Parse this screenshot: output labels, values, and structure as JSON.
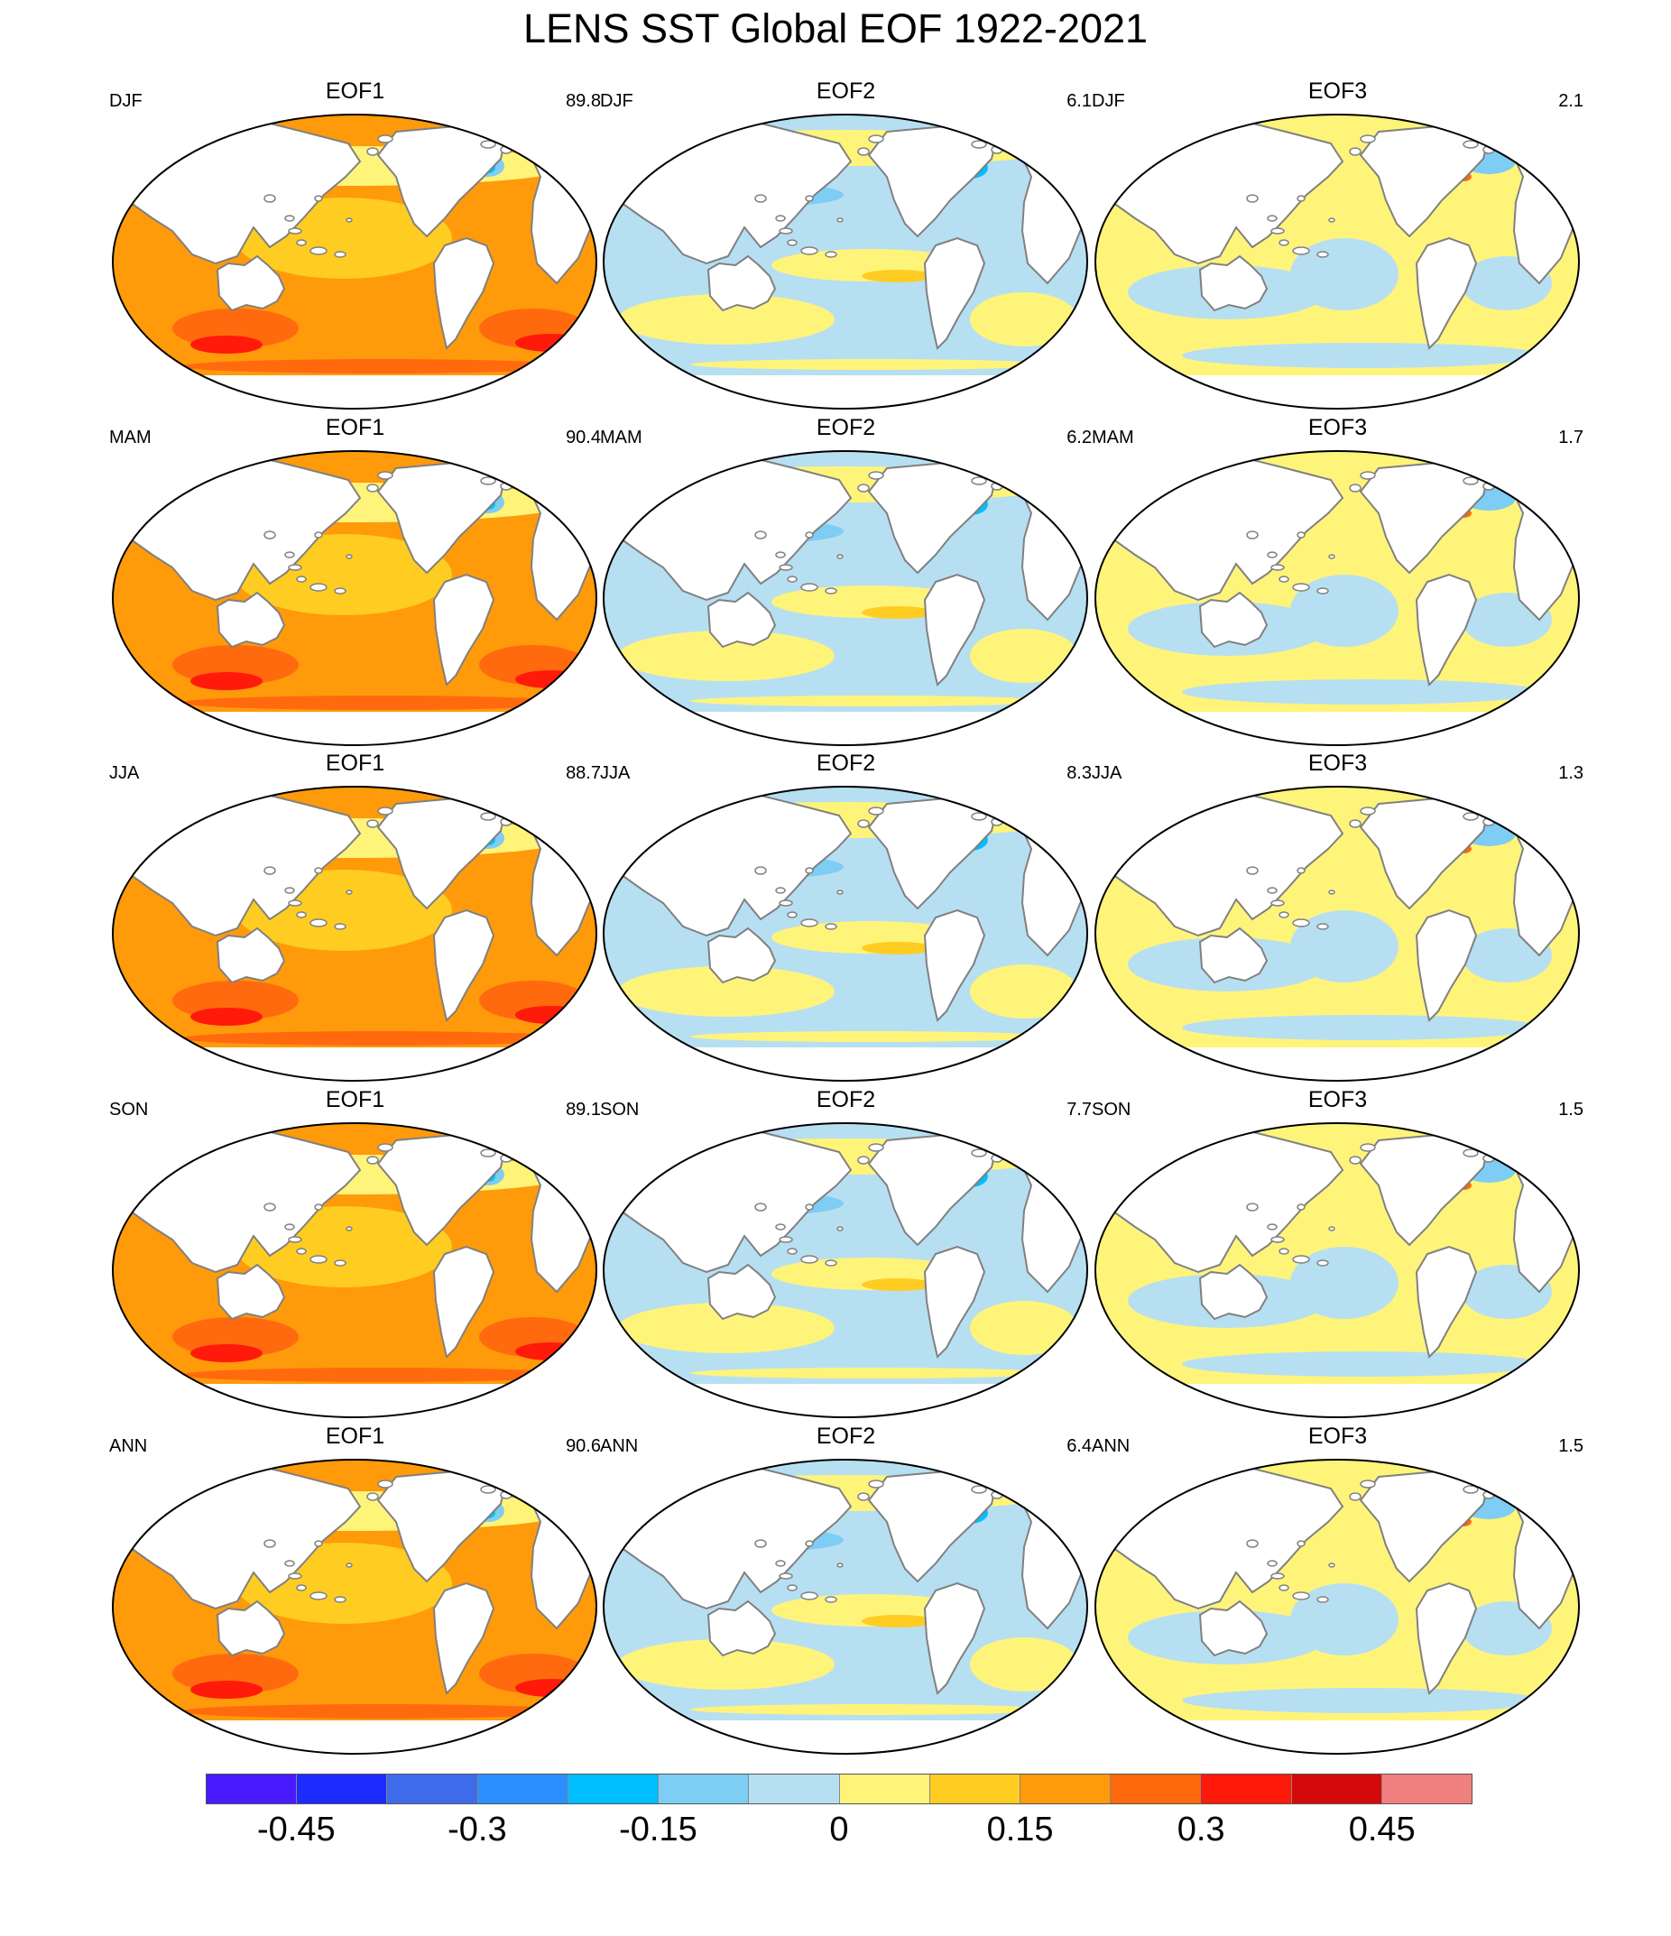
{
  "title": "LENS SST Global EOF 1922-2021",
  "chart_data": {
    "type": "heatmap",
    "title": "LENS SST Global EOF 1922-2021",
    "projection": "global map (Pacific-centered)",
    "rows": [
      "DJF",
      "MAM",
      "JJA",
      "SON",
      "ANN"
    ],
    "columns": [
      "EOF1",
      "EOF2",
      "EOF3"
    ],
    "panels": [
      {
        "season": "DJF",
        "eof": "EOF1",
        "variance": "89.8",
        "pattern": "eof1"
      },
      {
        "season": "DJF",
        "eof": "EOF2",
        "variance": "6.1",
        "pattern": "eof2"
      },
      {
        "season": "DJF",
        "eof": "EOF3",
        "variance": "2.1",
        "pattern": "eof3"
      },
      {
        "season": "MAM",
        "eof": "EOF1",
        "variance": "90.4",
        "pattern": "eof1"
      },
      {
        "season": "MAM",
        "eof": "EOF2",
        "variance": "6.2",
        "pattern": "eof2"
      },
      {
        "season": "MAM",
        "eof": "EOF3",
        "variance": "1.7",
        "pattern": "eof3"
      },
      {
        "season": "JJA",
        "eof": "EOF1",
        "variance": "88.7",
        "pattern": "eof1"
      },
      {
        "season": "JJA",
        "eof": "EOF2",
        "variance": "8.3",
        "pattern": "eof2"
      },
      {
        "season": "JJA",
        "eof": "EOF3",
        "variance": "1.3",
        "pattern": "eof3"
      },
      {
        "season": "SON",
        "eof": "EOF1",
        "variance": "89.1",
        "pattern": "eof1"
      },
      {
        "season": "SON",
        "eof": "EOF2",
        "variance": "7.7",
        "pattern": "eof2"
      },
      {
        "season": "SON",
        "eof": "EOF3",
        "variance": "1.5",
        "pattern": "eof3"
      },
      {
        "season": "ANN",
        "eof": "EOF1",
        "variance": "90.6",
        "pattern": "eof1"
      },
      {
        "season": "ANN",
        "eof": "EOF2",
        "variance": "6.4",
        "pattern": "eof2"
      },
      {
        "season": "ANN",
        "eof": "EOF3",
        "variance": "1.5",
        "pattern": "eof3"
      }
    ],
    "colorbar": {
      "colors": [
        "#4a1aff",
        "#1c2cff",
        "#3d6bea",
        "#2a90ff",
        "#00bfff",
        "#7dcdf5",
        "#b7dff2",
        "#fff47a",
        "#ffcc22",
        "#ff9a0a",
        "#ff6a0f",
        "#ff1a0a",
        "#d40a0a",
        "#f08080"
      ],
      "tick_labels": [
        "-0.45",
        "-0.3",
        "-0.15",
        "0",
        "0.15",
        "0.3",
        "0.45"
      ],
      "range": [
        -0.525,
        0.525
      ],
      "step": 0.075
    }
  }
}
